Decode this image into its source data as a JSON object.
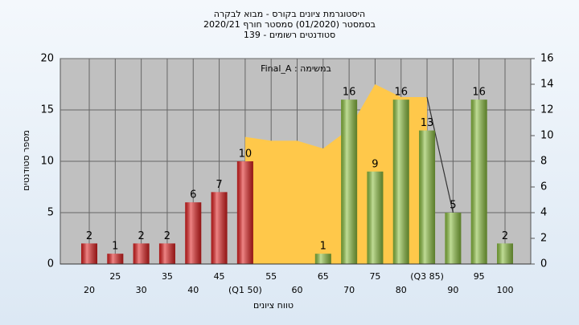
{
  "chart_data": {
    "type": "bar",
    "title": "היסטוגרמת ציונים בקורס - מבוא לבקרה",
    "subtitle": [
      "בסמסטר (01/2020) סמסטר חורף 2020/21",
      "139 - סטודנטים רשומים"
    ],
    "annotation": "Final_A : במשימה",
    "y_label": "מספר סטודנטים",
    "x_label": "טווח ציונים",
    "categories": [
      "20",
      "25",
      "30",
      "35",
      "40",
      "45",
      "(Q1 50)",
      "55",
      "60",
      "65",
      "70",
      "75",
      "80",
      "(Q3 85)",
      "90",
      "95",
      "100"
    ],
    "values": [
      2,
      1,
      2,
      2,
      6,
      7,
      10,
      0,
      0,
      1,
      16,
      9,
      16,
      13,
      5,
      16,
      2
    ],
    "colors": [
      "#e02020",
      "#e02020",
      "#e02020",
      "#e02020",
      "#e02020",
      "#e02020",
      "#e02020",
      "#e02020",
      "#e02020",
      "#8cc040",
      "#8cc040",
      "#8cc040",
      "#8cc040",
      "#8cc040",
      "#8cc040",
      "#8cc040",
      "#8cc040"
    ],
    "series": [
      {
        "type": "area",
        "axis": "y2",
        "color": "#ffc84a",
        "values": [
          null,
          null,
          null,
          null,
          null,
          null,
          9.9,
          9.6,
          9.6,
          9.0,
          10.5,
          14,
          13,
          13,
          null,
          null,
          null
        ]
      },
      {
        "type": "line",
        "axis": "y2",
        "color": "#333333",
        "values": [
          null,
          null,
          null,
          null,
          null,
          null,
          null,
          null,
          null,
          null,
          null,
          null,
          null,
          13,
          4,
          null,
          null
        ]
      }
    ],
    "ylim": [
      0,
      20
    ],
    "yticks": [
      0,
      5,
      10,
      15,
      20
    ],
    "y2lim": [
      0,
      16
    ],
    "y2ticks": [
      0,
      2,
      4,
      6,
      8,
      10,
      12,
      14,
      16
    ],
    "grid": true
  }
}
